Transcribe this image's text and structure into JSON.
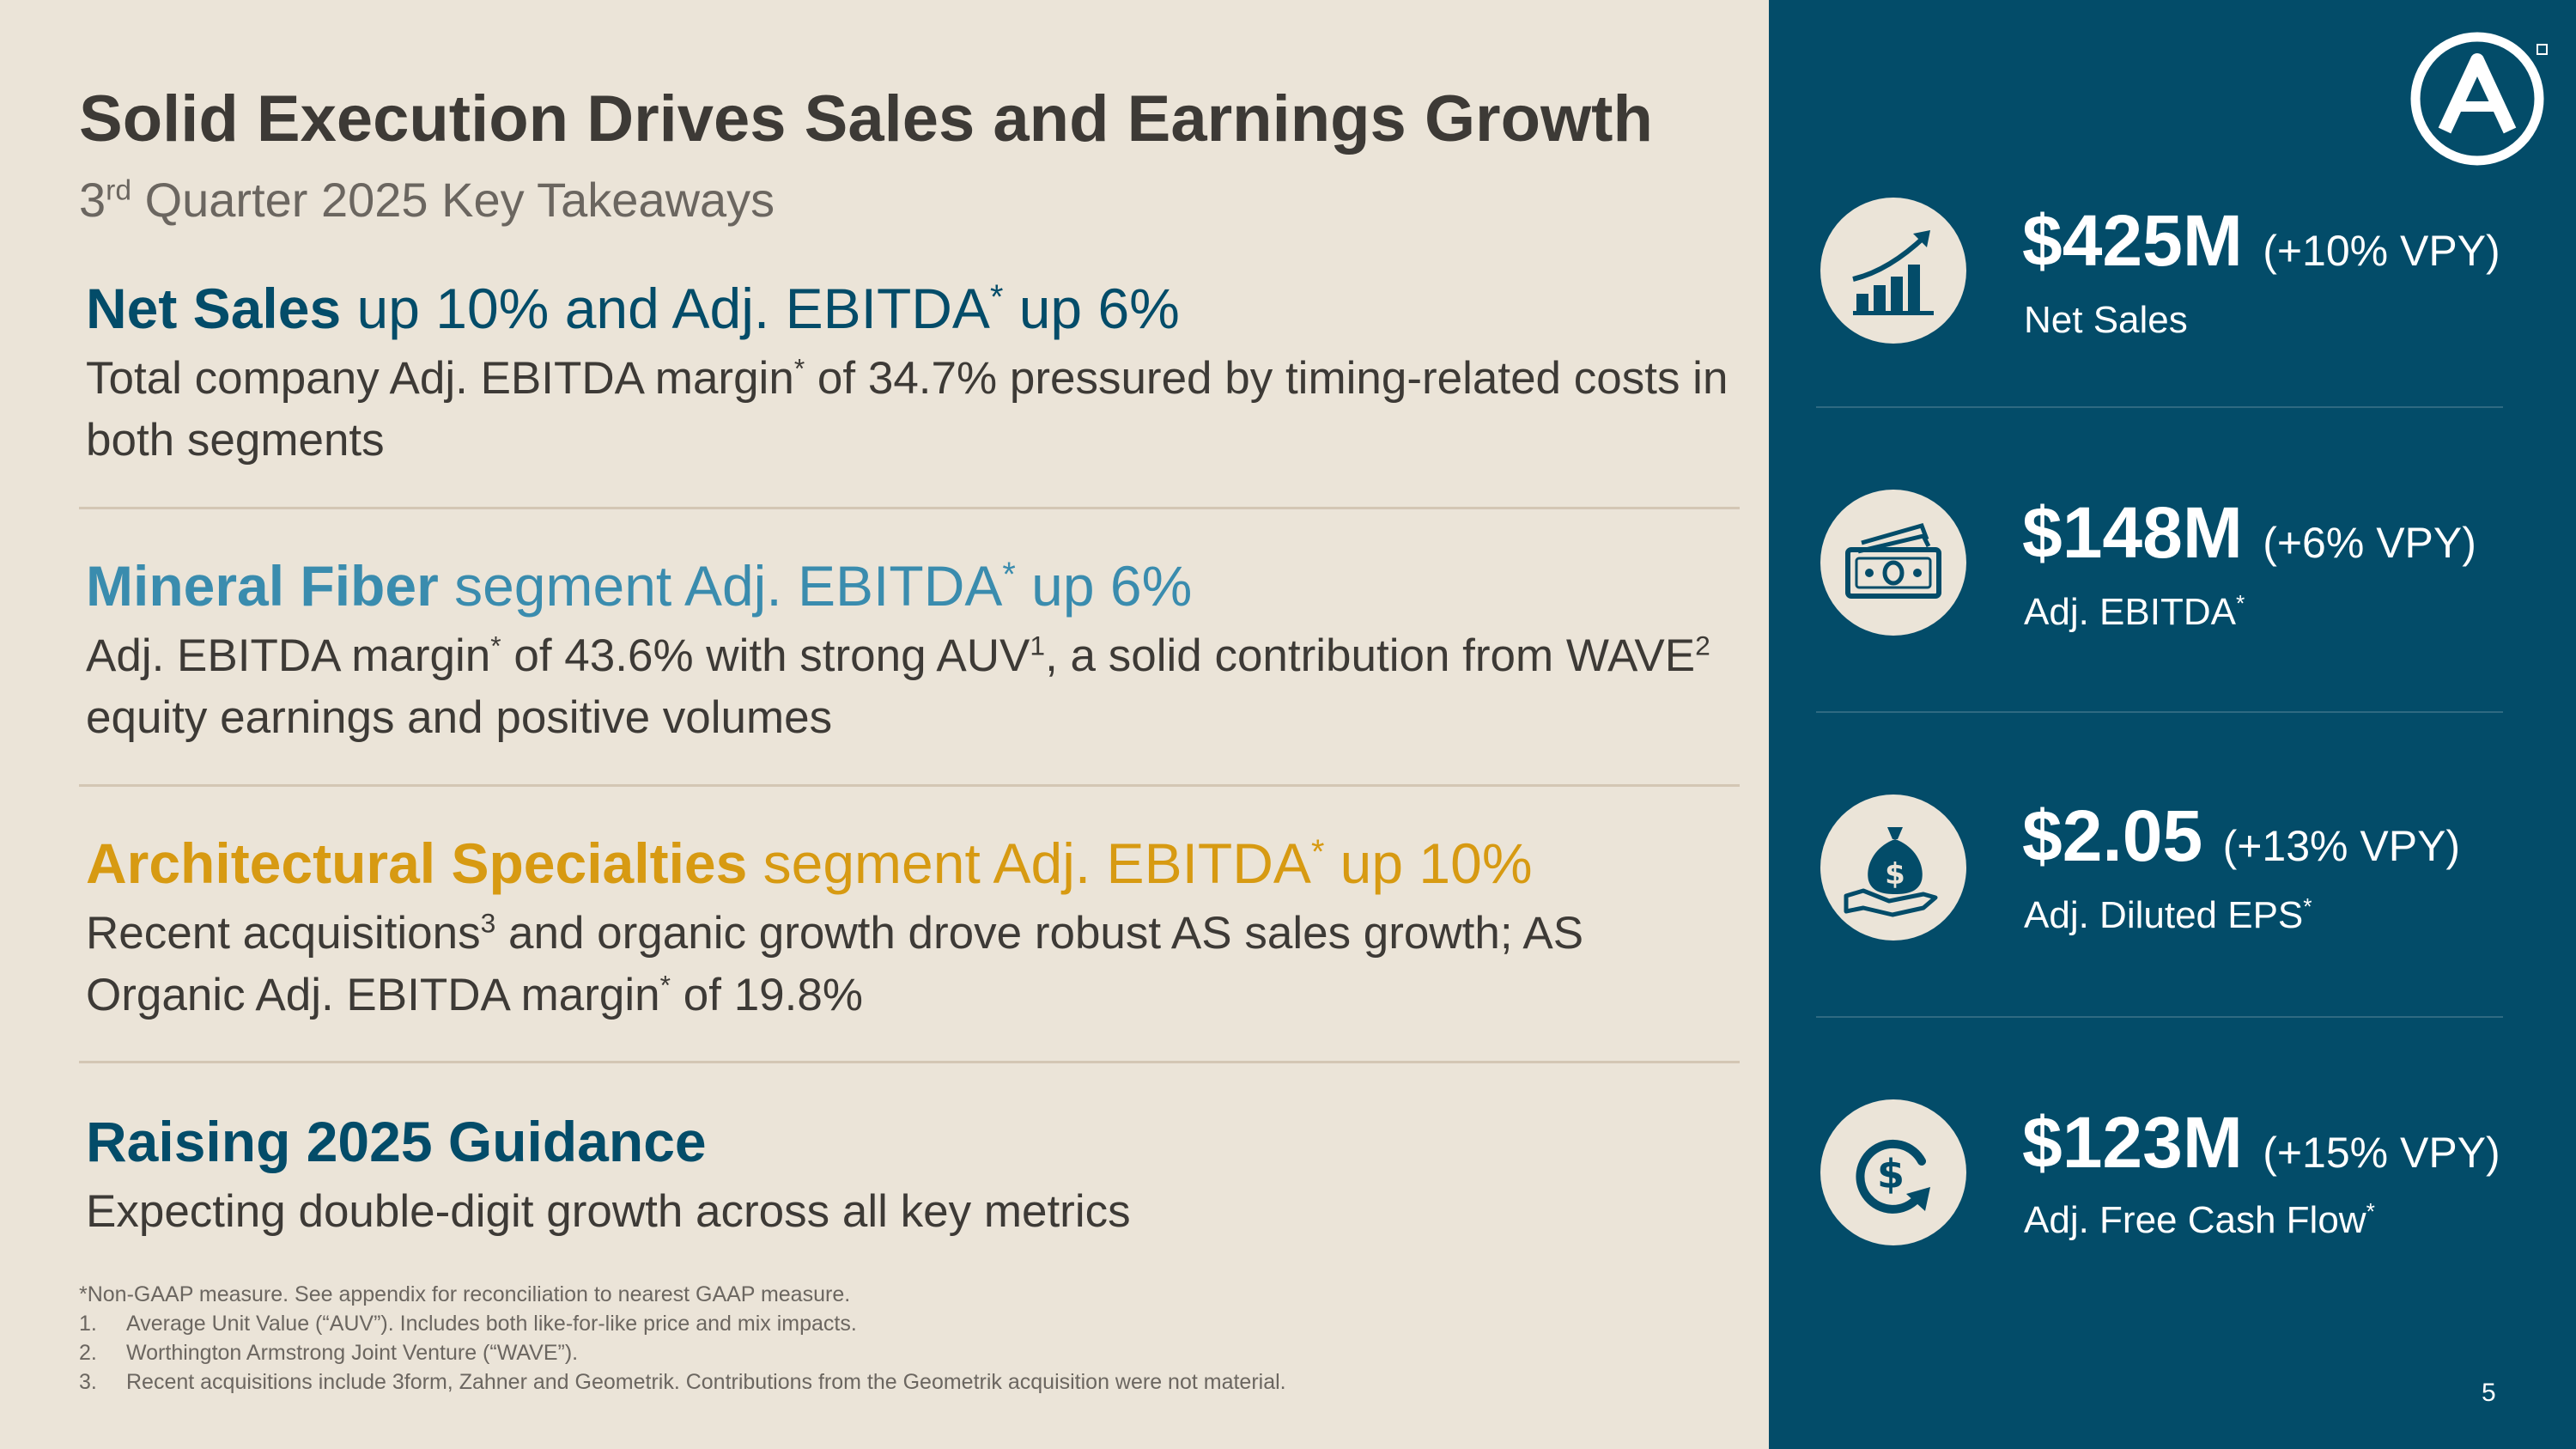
{
  "header": {
    "title": "Solid Execution Drives Sales and Earnings Growth",
    "subtitle_ord": "3",
    "subtitle_sup": "rd",
    "subtitle_rest": " Quarter 2025 Key Takeaways"
  },
  "takeaways": [
    {
      "head_bold": "Net Sales",
      "head_rest": " up 10% and Adj. EBITDA",
      "head_sup": "*",
      "head_tail": " up 6%",
      "color": "#034c69",
      "body_a": "Total company Adj. EBITDA margin",
      "body_sup": "*",
      "body_b": " of 34.7% pressured by timing-related costs in both segments"
    },
    {
      "head_bold": "Mineral Fiber",
      "head_rest": " segment Adj. EBITDA",
      "head_sup": "*",
      "head_tail": " up 6%",
      "color": "#3a8cae",
      "body_a": "Adj. EBITDA margin",
      "body_sup": "*",
      "body_b": " of 43.6% with strong AUV",
      "body_sup2": "1",
      "body_c": ", a solid contribution from WAVE",
      "body_sup3": "2",
      "body_d": " equity earnings and positive volumes"
    },
    {
      "head_bold": "Architectural Specialties",
      "head_rest": " segment Adj. EBITDA",
      "head_sup": "*",
      "head_tail": " up 10%",
      "color": "#d79a12",
      "body_a": "Recent acquisitions",
      "body_sup": "3",
      "body_b": " and organic growth drove robust AS sales growth; AS Organic Adj. EBITDA margin",
      "body_sup2": "*",
      "body_c": " of 19.8%"
    },
    {
      "head_bold": "Raising 2025 Guidance",
      "color": "#034c69",
      "body_a": "Expecting double-digit growth across all key metrics"
    }
  ],
  "footnotes": {
    "main": "*Non-GAAP measure. See appendix for reconciliation to nearest GAAP measure.",
    "items": [
      {
        "num": "1.",
        "text": "Average Unit Value (“AUV”). Includes both like-for-like price and mix impacts."
      },
      {
        "num": "2.",
        "text": "Worthington Armstrong Joint Venture (“WAVE”)."
      },
      {
        "num": "3.",
        "text": "Recent acquisitions include 3form, Zahner and Geometrik. Contributions from the Geometrik acquisition were not material."
      }
    ]
  },
  "metrics": [
    {
      "value": "$425M",
      "change": "(+10% VPY)",
      "label": "Net Sales",
      "label_sup": "",
      "icon": "bar-chart-growth-icon"
    },
    {
      "value": "$148M",
      "change": "(+6% VPY)",
      "label": "Adj. EBITDA",
      "label_sup": "*",
      "icon": "cash-bills-icon"
    },
    {
      "value": "$2.05",
      "change": "(+13% VPY)",
      "label": "Adj. Diluted EPS",
      "label_sup": "*",
      "icon": "money-bag-hand-icon"
    },
    {
      "value": "$123M",
      "change": "(+15% VPY)",
      "label": "Adj. Free Cash Flow",
      "label_sup": "*",
      "icon": "dollar-cycle-icon"
    }
  ],
  "page_number": "5",
  "colors": {
    "panel": "#034c69",
    "background": "#ebe4d8",
    "accent_gold": "#d79a12",
    "accent_teal": "#3a8cae"
  }
}
